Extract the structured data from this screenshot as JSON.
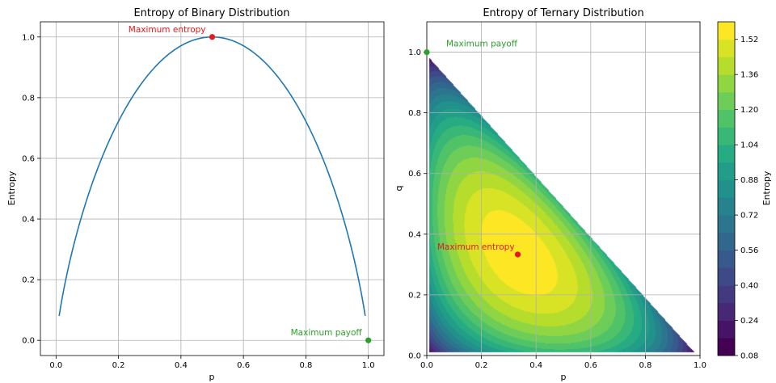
{
  "colors": {
    "line": "#1f77b4",
    "max_entropy": "#e41a1c",
    "max_payoff": "#2ca02c",
    "grid": "#b0b0b0",
    "axis": "#000000"
  },
  "chart_data": [
    {
      "type": "line",
      "title": "Entropy of Binary Distribution",
      "xlabel": "p",
      "ylabel": "Entropy",
      "xlim": [
        -0.05,
        1.05
      ],
      "ylim": [
        -0.05,
        1.05
      ],
      "grid": true,
      "x_ticks": [
        0.0,
        0.2,
        0.4,
        0.6,
        0.8,
        1.0
      ],
      "x_tick_labels": [
        "0.0",
        "0.2",
        "0.4",
        "0.6",
        "0.8",
        "1.0"
      ],
      "y_ticks": [
        0.0,
        0.2,
        0.4,
        0.6,
        0.8,
        1.0
      ],
      "y_tick_labels": [
        "0.0",
        "0.2",
        "0.4",
        "0.6",
        "0.8",
        "1.0"
      ],
      "series": [
        {
          "x": [
            0.01,
            0.05,
            0.1,
            0.15,
            0.2,
            0.25,
            0.3,
            0.35,
            0.4,
            0.45,
            0.5,
            0.55,
            0.6,
            0.65,
            0.7,
            0.75,
            0.8,
            0.85,
            0.9,
            0.95,
            0.99
          ],
          "y": [
            0.081,
            0.286,
            0.469,
            0.61,
            0.722,
            0.811,
            0.881,
            0.934,
            0.971,
            0.993,
            1.0,
            0.993,
            0.971,
            0.934,
            0.881,
            0.811,
            0.722,
            0.61,
            0.469,
            0.286,
            0.081
          ]
        }
      ],
      "points": [
        {
          "label": "Maximum entropy",
          "x": 0.5,
          "y": 1.0,
          "color": "#e41a1c"
        },
        {
          "label": "Maximum payoff",
          "x": 1.0,
          "y": 0.0,
          "color": "#2ca02c"
        }
      ]
    },
    {
      "type": "heatmap",
      "title": "Entropy of Ternary Distribution",
      "xlabel": "p",
      "ylabel": "q",
      "xlim": [
        0.0,
        1.0
      ],
      "ylim": [
        0.0,
        1.1
      ],
      "grid": true,
      "x_ticks": [
        0.0,
        0.2,
        0.4,
        0.6,
        0.8,
        1.0
      ],
      "x_tick_labels": [
        "0.0",
        "0.2",
        "0.4",
        "0.6",
        "0.8",
        "1.0"
      ],
      "y_ticks": [
        0.0,
        0.2,
        0.4,
        0.6,
        0.8,
        1.0
      ],
      "y_tick_labels": [
        "0.0",
        "0.2",
        "0.4",
        "0.6",
        "0.8",
        "1.0"
      ],
      "domain": "p + q <= 1",
      "points": [
        {
          "label": "Maximum entropy",
          "x": 0.333,
          "y": 0.333,
          "color": "#e41a1c"
        },
        {
          "label": "Maximum payoff",
          "x": 0.0,
          "y": 1.0,
          "color": "#2ca02c"
        }
      ],
      "colorbar": {
        "label": "Entropy",
        "min": 0.08,
        "max": 1.6,
        "ticks": [
          0.08,
          0.24,
          0.4,
          0.56,
          0.72,
          0.88,
          1.04,
          1.2,
          1.36,
          1.52
        ],
        "tick_labels": [
          "0.08",
          "0.24",
          "0.40",
          "0.56",
          "0.72",
          "0.88",
          "1.04",
          "1.20",
          "1.36",
          "1.52"
        ],
        "levels": [
          0.08,
          0.16,
          0.24,
          0.32,
          0.4,
          0.48,
          0.56,
          0.64,
          0.72,
          0.8,
          0.88,
          0.96,
          1.04,
          1.12,
          1.2,
          1.28,
          1.36,
          1.44,
          1.52,
          1.6
        ],
        "colormap": "viridis"
      }
    }
  ]
}
